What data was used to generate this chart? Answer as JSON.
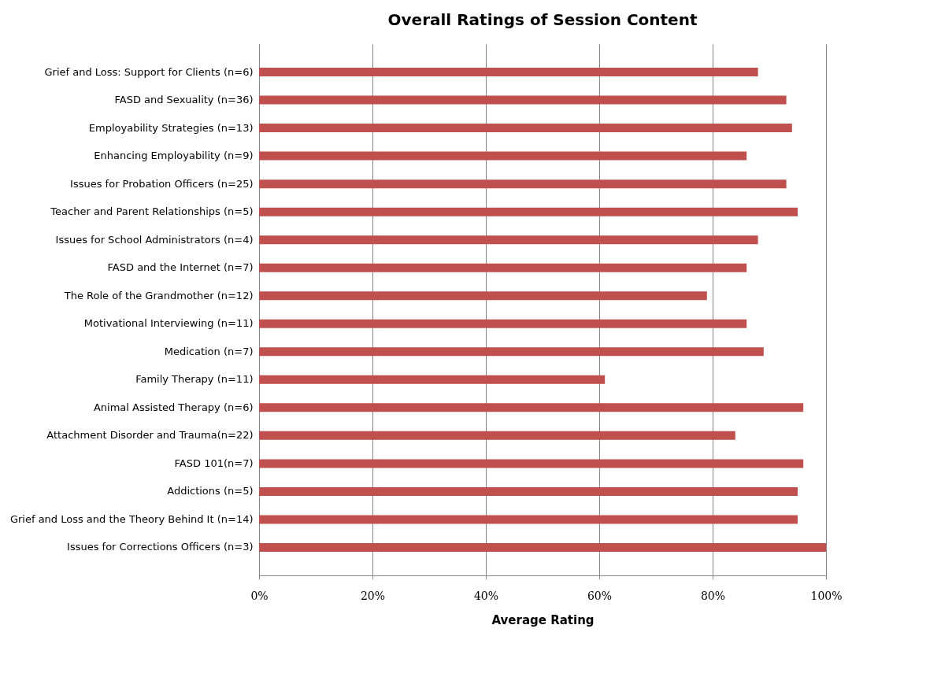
{
  "chart_data": {
    "type": "bar",
    "orientation": "horizontal",
    "title": "Overall Ratings of Session Content",
    "xlabel": "Average Rating",
    "categories": [
      "Grief and Loss: Support for Clients (n=6)",
      "FASD and Sexuality (n=36)",
      "Employability Strategies (n=13)",
      "Enhancing Employability  (n=9)",
      "Issues for Probation Officers (n=25)",
      "Teacher and Parent Relationships (n=5)",
      "Issues for School Administrators (n=4)",
      "FASD and the Internet (n=7)",
      "The Role of the Grandmother (n=12)",
      "Motivational Interviewing (n=11)",
      "Medication (n=7)",
      "Family Therapy (n=11)",
      "Animal Assisted Therapy (n=6)",
      "Attachment Disorder and Trauma(n=22)",
      "FASD 101(n=7)",
      "Addictions (n=5)",
      "Grief and Loss and the Theory Behind It  (n=14)",
      "Issues for Corrections Officers (n=3)"
    ],
    "values": [
      88,
      93,
      94,
      86,
      93,
      95,
      88,
      86,
      79,
      86,
      89,
      61,
      96,
      84,
      96,
      95,
      95,
      100
    ],
    "color": "#c0504d",
    "xlim": [
      0,
      100
    ],
    "xticks": [
      {
        "value": 0,
        "label": "0%"
      },
      {
        "value": 20,
        "label": "20%"
      },
      {
        "value": 40,
        "label": "40%"
      },
      {
        "value": 60,
        "label": "60%"
      },
      {
        "value": 80,
        "label": "80%"
      },
      {
        "value": 100,
        "label": "100%"
      }
    ],
    "grid": "x"
  }
}
